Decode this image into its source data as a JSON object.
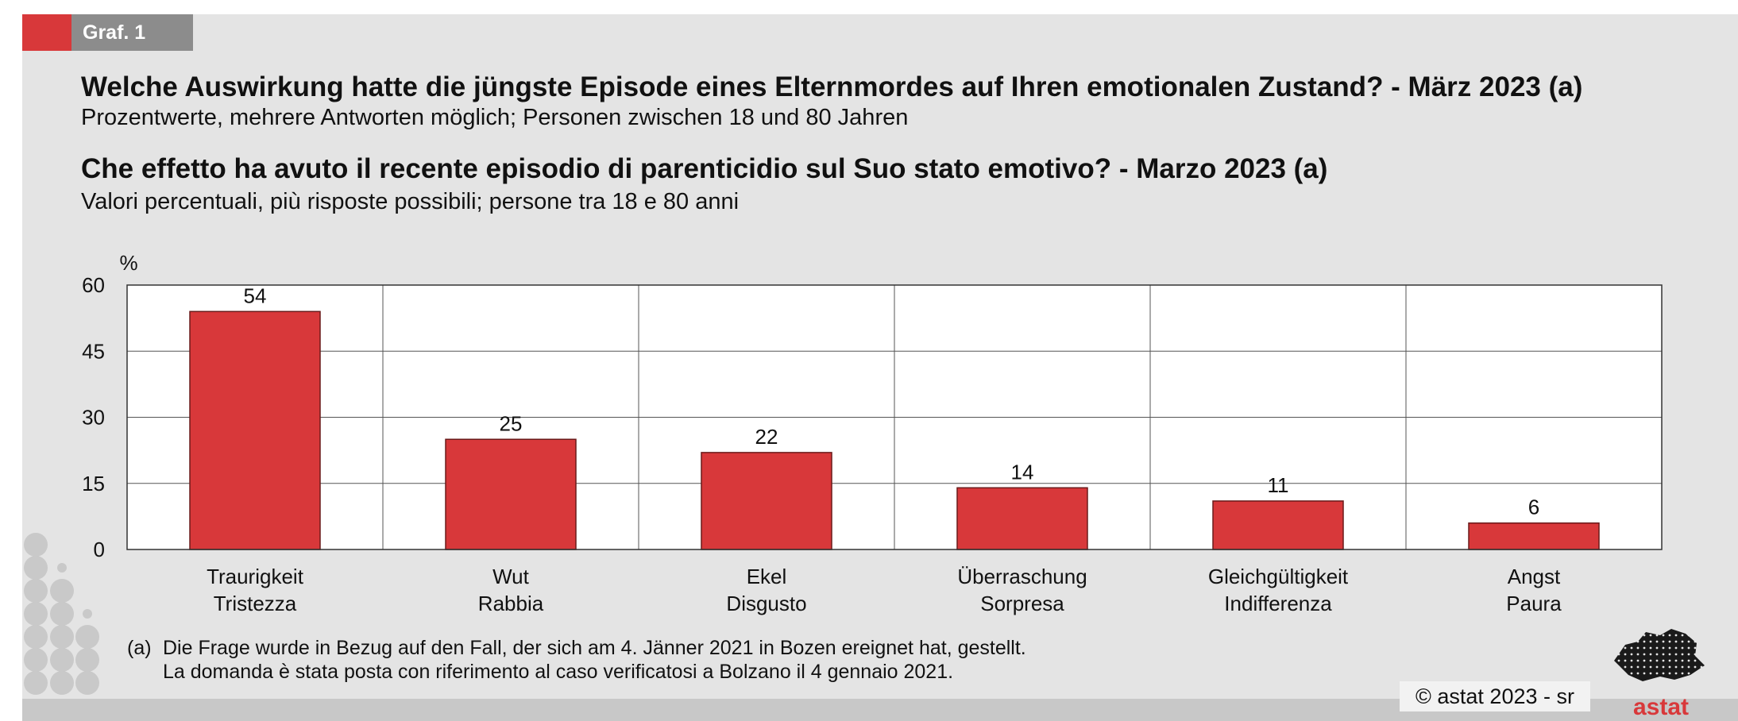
{
  "header": {
    "graf_label": "Graf. 1",
    "title_de": "Welche Auswirkung hatte die jüngste Episode eines Elternmordes auf Ihren emotionalen Zustand? - März 2023 (a)",
    "subtitle_de": "Prozentwerte, mehrere Antworten möglich; Personen zwischen 18 und 80 Jahren",
    "title_it": "Che effetto ha avuto il recente episodio di parenticidio sul Suo stato emotivo? - Marzo 2023 (a)",
    "subtitle_it": "Valori percentuali, più risposte possibili; persone tra 18 e 80 anni"
  },
  "chart_data": {
    "type": "bar",
    "categories": [
      [
        "Traurigkeit",
        "Tristezza"
      ],
      [
        "Wut",
        "Rabbia"
      ],
      [
        "Ekel",
        "Disgusto"
      ],
      [
        "Überraschung",
        "Sorpresa"
      ],
      [
        "Gleichgültigkeit",
        "Indifferenza"
      ],
      [
        "Angst",
        "Paura"
      ]
    ],
    "values": [
      54,
      25,
      22,
      14,
      11,
      6
    ],
    "ylabel": "%",
    "ylim": [
      0,
      60
    ],
    "yticks": [
      0,
      15,
      30,
      45,
      60
    ],
    "grid": true,
    "bar_color": "#d8383a"
  },
  "footnote": {
    "marker": "(a)",
    "line_de": "Die Frage wurde in Bezug auf den Fall, der sich am 4. Jänner 2021 in Bozen ereignet hat, gestellt.",
    "line_it": "La domanda è stata posta con riferimento al caso verificatosi a Bolzano il 4 gennaio 2021."
  },
  "copyright": "© astat 2023 - sr",
  "logo_text": "astat",
  "colors": {
    "accent": "#d8383a",
    "panel": "#e4e4e4",
    "graf_label_bg": "#8c8c8c"
  }
}
